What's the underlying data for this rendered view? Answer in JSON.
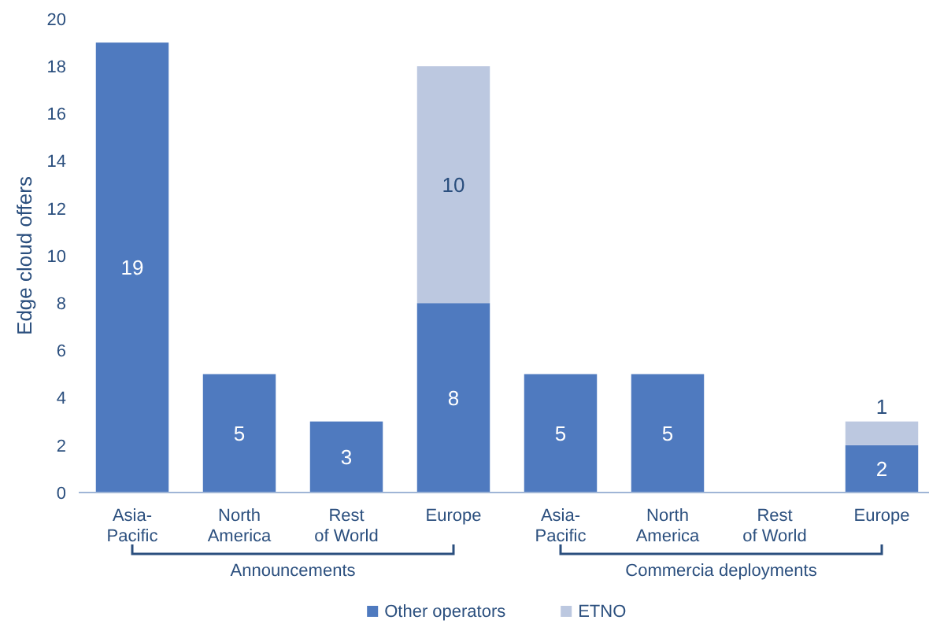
{
  "chart_data": {
    "type": "bar",
    "ylabel": "Edge cloud offers",
    "categories": [
      "Asia-Pacific",
      "North America",
      "Rest of World",
      "Europe",
      "Asia-Pacific",
      "North America",
      "Rest of World",
      "Europe"
    ],
    "stacked": true,
    "ylim": [
      0,
      20
    ],
    "yticks": [
      0,
      2,
      4,
      6,
      8,
      10,
      12,
      14,
      16,
      18,
      20
    ],
    "grid": false,
    "legend": "bottom",
    "series": [
      {
        "name": "Other operators",
        "color": "#4f7abf",
        "values": [
          19,
          5,
          3,
          8,
          5,
          5,
          0,
          2
        ],
        "value_labels": [
          "19",
          "5",
          "3",
          "8",
          "5",
          "5",
          null,
          "2"
        ]
      },
      {
        "name": "ETNO",
        "color": "#bcc8e0",
        "values": [
          null,
          null,
          null,
          10,
          null,
          null,
          null,
          1
        ],
        "value_labels": [
          null,
          null,
          null,
          "10",
          null,
          null,
          null,
          "1"
        ]
      }
    ],
    "annotations": [
      "Announcements",
      "Commercia deployments"
    ]
  }
}
